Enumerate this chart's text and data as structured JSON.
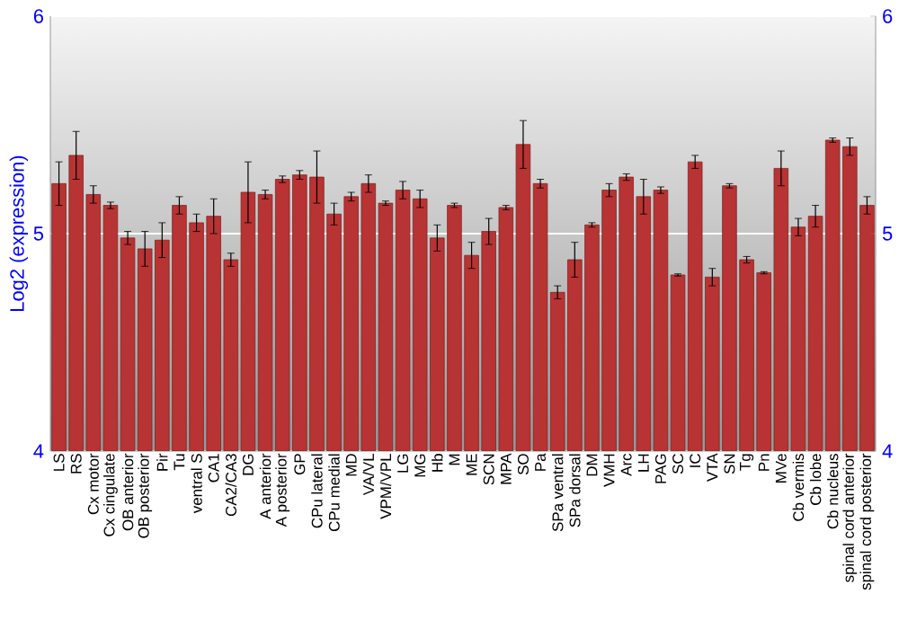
{
  "chart_data": {
    "type": "bar",
    "ylabel": "Log2 (expression)",
    "categories": [
      "LS",
      "RS",
      "Cx motor",
      "Cx cingulate",
      "OB anterior",
      "OB posterior",
      "Pir",
      "Tu",
      "ventral S",
      "CA1",
      "CA2/CA3",
      "DG",
      "A anterior",
      "A posterior",
      "GP",
      "CPu lateral",
      "CPu medial",
      "MD",
      "VA/VL",
      "VPM/VPL",
      "LG",
      "MG",
      "Hb",
      "M",
      "ME",
      "SCN",
      "MPA",
      "SO",
      "Pa",
      "SPa ventral",
      "SPa dorsal",
      "DM",
      "VMH",
      "Arc",
      "LH",
      "PAG",
      "SC",
      "IC",
      "VTA",
      "SN",
      "Tg",
      "Pn",
      "MVe",
      "Cb vermis",
      "Cb lobe",
      "Cb nucleus",
      "spinal cord anterior",
      "spinal cord posterior"
    ],
    "values": [
      5.23,
      5.36,
      5.18,
      5.13,
      4.98,
      4.93,
      4.97,
      5.13,
      5.05,
      5.08,
      4.88,
      5.19,
      5.18,
      5.25,
      5.27,
      5.26,
      5.09,
      5.17,
      5.23,
      5.14,
      5.2,
      5.16,
      4.98,
      5.13,
      4.9,
      5.01,
      5.12,
      5.41,
      5.23,
      4.73,
      4.88,
      5.04,
      5.2,
      5.26,
      5.17,
      5.2,
      4.81,
      5.33,
      4.8,
      5.22,
      4.88,
      4.82,
      5.3,
      5.03,
      5.08,
      5.43,
      5.4,
      5.13
    ],
    "errors": [
      0.1,
      0.11,
      0.04,
      0.015,
      0.03,
      0.08,
      0.08,
      0.04,
      0.04,
      0.08,
      0.03,
      0.14,
      0.02,
      0.015,
      0.02,
      0.12,
      0.05,
      0.02,
      0.04,
      0.01,
      0.04,
      0.04,
      0.06,
      0.01,
      0.06,
      0.06,
      0.01,
      0.11,
      0.02,
      0.03,
      0.08,
      0.01,
      0.03,
      0.015,
      0.08,
      0.015,
      0.005,
      0.03,
      0.04,
      0.01,
      0.015,
      0.005,
      0.08,
      0.04,
      0.05,
      0.01,
      0.04,
      0.04
    ],
    "color": "#b83333",
    "ylim": [
      4,
      6
    ],
    "yticks": [
      4,
      5,
      6
    ],
    "y2lim": [
      4,
      6
    ],
    "y2ticks": [
      4,
      5,
      6
    ],
    "grid": "y"
  }
}
